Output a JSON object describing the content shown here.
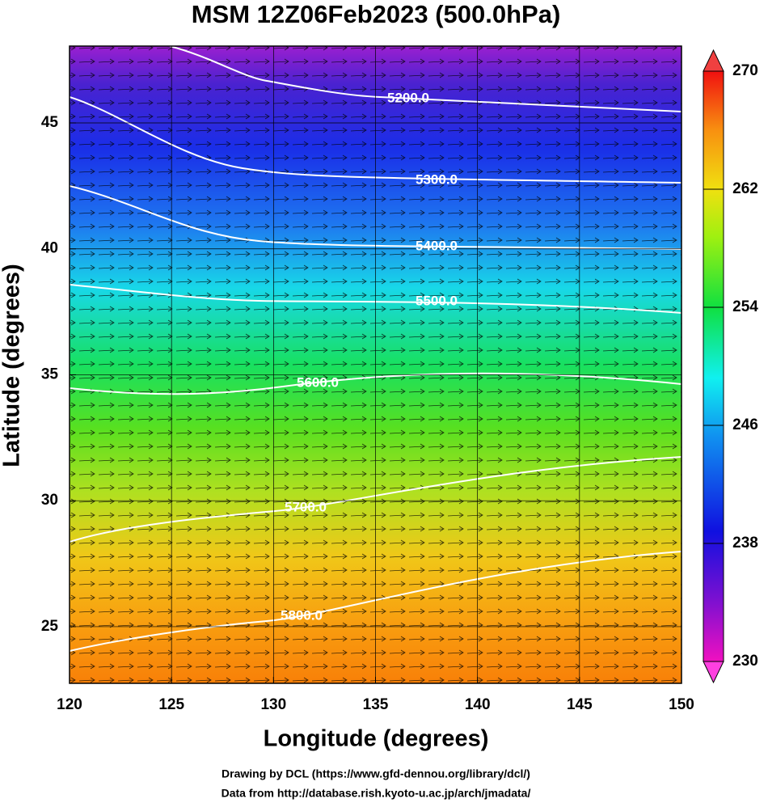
{
  "title": "MSM 12Z06Feb2023 (500.0hPa)",
  "x_axis": {
    "label": "Longitude (degrees)",
    "lim": [
      120,
      150
    ],
    "ticks": [
      120,
      125,
      130,
      135,
      140,
      145,
      150
    ]
  },
  "y_axis": {
    "label": "Latitude  (degrees)",
    "lim": [
      22.75,
      48.05
    ],
    "ticks": [
      25,
      30,
      35,
      40,
      45
    ]
  },
  "colorbar": {
    "lim": [
      230,
      270
    ],
    "ticks": [
      230,
      238,
      246,
      254,
      262,
      270
    ]
  },
  "contours": [
    "5200.0",
    "5300.0",
    "5400.0",
    "5500.0",
    "5600.0",
    "5700.0",
    "5800.0"
  ],
  "credits": [
    "Drawing by DCL (https://www.gfd-dennou.org/library/dcl/)",
    "Data from http://database.rish.kyoto-u.ac.jp/arch/jmadata/"
  ]
}
